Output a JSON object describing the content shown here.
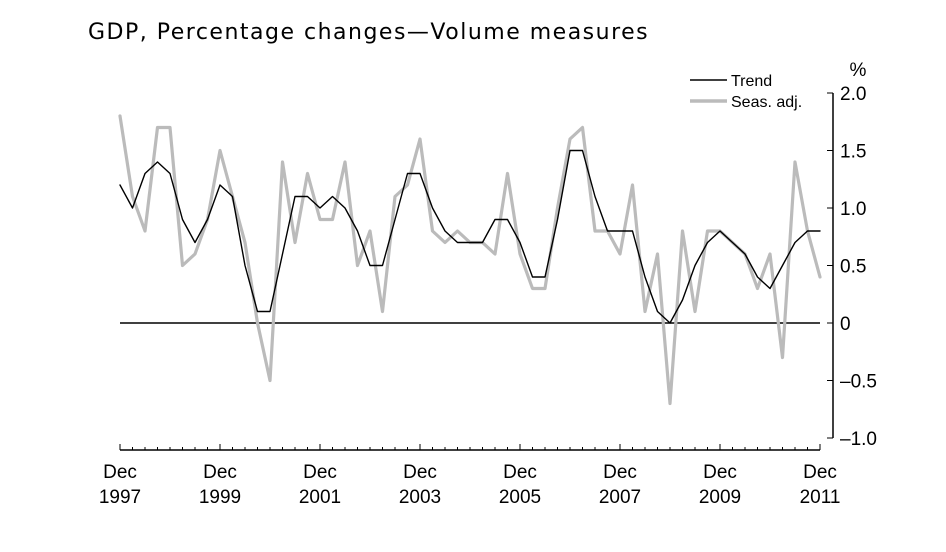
{
  "chart_data": {
    "type": "line",
    "title": "GDP, Percentage changes—Volume measures",
    "xlabel": "",
    "ylabel": "%",
    "ylim": [
      -1.0,
      2.0
    ],
    "yticks": [
      {
        "value": 2.0,
        "label": "2.0"
      },
      {
        "value": 1.5,
        "label": "1.5"
      },
      {
        "value": 1.0,
        "label": "1.0"
      },
      {
        "value": 0.5,
        "label": "0.5"
      },
      {
        "value": 0,
        "label": "0"
      },
      {
        "value": -0.5,
        "label": "–0.5"
      },
      {
        "value": -1.0,
        "label": "–1.0"
      }
    ],
    "xticks": [
      {
        "month": "Dec",
        "year": "1997",
        "index": 0
      },
      {
        "month": "Dec",
        "year": "1999",
        "index": 8
      },
      {
        "month": "Dec",
        "year": "2001",
        "index": 16
      },
      {
        "month": "Dec",
        "year": "2003",
        "index": 24
      },
      {
        "month": "Dec",
        "year": "2005",
        "index": 32
      },
      {
        "month": "Dec",
        "year": "2007",
        "index": 40
      },
      {
        "month": "Dec",
        "year": "2009",
        "index": 48
      },
      {
        "month": "Dec",
        "year": "2011",
        "index": 56
      }
    ],
    "x_start": "Dec 1997",
    "x_end": "Dec 2011",
    "frequency": "quarterly",
    "legend": {
      "position": "top-right"
    },
    "grid": false,
    "series": [
      {
        "name": "Trend",
        "color": "#000000",
        "values": [
          1.2,
          1.0,
          1.3,
          1.4,
          1.3,
          0.9,
          0.7,
          0.9,
          1.2,
          1.1,
          0.5,
          0.1,
          0.1,
          0.6,
          1.1,
          1.1,
          1.0,
          1.1,
          1.0,
          0.8,
          0.5,
          0.5,
          0.9,
          1.3,
          1.3,
          1.0,
          0.8,
          0.7,
          0.7,
          0.7,
          0.9,
          0.9,
          0.7,
          0.4,
          0.4,
          0.9,
          1.5,
          1.5,
          1.1,
          0.8,
          0.8,
          0.8,
          0.4,
          0.1,
          0.0,
          0.2,
          0.5,
          0.7,
          0.8,
          0.7,
          0.6,
          0.4,
          0.3,
          0.5,
          0.7,
          0.8,
          0.8
        ]
      },
      {
        "name": "Seas. adj.",
        "color": "#bbbbbb",
        "values": [
          1.8,
          1.1,
          0.8,
          1.7,
          1.7,
          0.5,
          0.6,
          0.9,
          1.5,
          1.1,
          0.7,
          0.0,
          -0.5,
          1.4,
          0.7,
          1.3,
          0.9,
          0.9,
          1.4,
          0.5,
          0.8,
          0.1,
          1.1,
          1.2,
          1.6,
          0.8,
          0.7,
          0.8,
          0.7,
          0.7,
          0.6,
          1.3,
          0.6,
          0.3,
          0.3,
          1.0,
          1.6,
          1.7,
          0.8,
          0.8,
          0.6,
          1.2,
          0.1,
          0.6,
          -0.7,
          0.8,
          0.1,
          0.8,
          0.8,
          0.7,
          0.6,
          0.3,
          0.6,
          -0.3,
          1.4,
          0.8,
          0.4
        ]
      }
    ]
  }
}
